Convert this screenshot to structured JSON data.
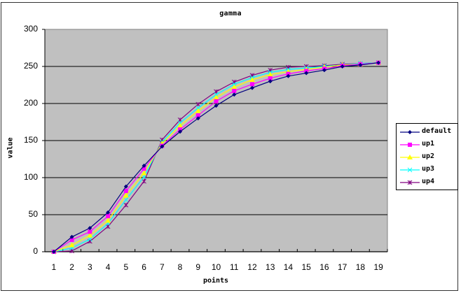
{
  "chart_data": {
    "type": "line",
    "title": "gamma",
    "xlabel": "points",
    "ylabel": "value",
    "ylim": [
      0,
      300
    ],
    "yticks": [
      0,
      50,
      100,
      150,
      200,
      250,
      300
    ],
    "grid": true,
    "legend_position": "right",
    "x": [
      1,
      2,
      3,
      4,
      5,
      6,
      7,
      8,
      9,
      10,
      11,
      12,
      13,
      14,
      15,
      16,
      17,
      18,
      19
    ],
    "series": [
      {
        "name": "default",
        "color": "#000080",
        "marker": "diamond",
        "values": [
          0,
          20,
          32,
          53,
          88,
          116,
          142,
          162,
          180,
          197,
          212,
          221,
          230,
          237,
          241,
          245,
          250,
          252,
          255
        ]
      },
      {
        "name": "up1",
        "color": "#ff00ff",
        "marker": "square",
        "values": [
          0,
          16,
          27,
          48,
          82,
          112,
          143,
          165,
          184,
          203,
          217,
          226,
          234,
          240,
          244,
          247,
          251,
          253,
          255
        ]
      },
      {
        "name": "up2",
        "color": "#ffff00",
        "marker": "triangle",
        "values": [
          0,
          9,
          22,
          42,
          76,
          106,
          146,
          170,
          190,
          208,
          222,
          232,
          239,
          243,
          246,
          249,
          252,
          253,
          255
        ]
      },
      {
        "name": "up3",
        "color": "#00ffff",
        "marker": "x",
        "values": [
          0,
          5,
          17,
          38,
          70,
          101,
          148,
          174,
          194,
          212,
          226,
          235,
          242,
          246,
          248,
          250,
          252,
          254,
          255
        ]
      },
      {
        "name": "up4",
        "color": "#800080",
        "marker": "star",
        "values": [
          0,
          1,
          14,
          34,
          63,
          95,
          151,
          178,
          199,
          216,
          229,
          238,
          245,
          249,
          250,
          251,
          253,
          254,
          255
        ]
      }
    ],
    "colors": {
      "plot_background": "#c0c0c0",
      "gridline": "#000000",
      "chart_background": "#ffffff"
    }
  }
}
